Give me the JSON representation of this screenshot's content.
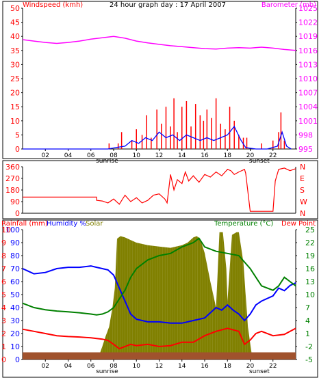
{
  "chart_data": [
    {
      "type": "line",
      "title": "24 hour graph day : 17 April 2007",
      "ylabel_left": "Windspeed (kmh)",
      "ylabel_right": "Barometer (mb)",
      "x_ticks": [
        "02",
        "04",
        "06",
        "08",
        "10",
        "12",
        "14",
        "16",
        "18",
        "20",
        "22"
      ],
      "x_events": {
        "sunrise": "sunrise",
        "sunset": "sunset"
      },
      "x_event_hours": {
        "sunrise": 6.7,
        "sunset": 19.9
      },
      "xlim": [
        0,
        24
      ],
      "ylim_left": [
        0,
        50
      ],
      "ylim_right": [
        995,
        1025
      ],
      "y_ticks_left": [
        0,
        5,
        10,
        15,
        20,
        25,
        30,
        35,
        40,
        45,
        50
      ],
      "y_ticks_right": [
        995,
        998,
        1001,
        1004,
        1007,
        1010,
        1013,
        1016,
        1019,
        1022,
        1025
      ],
      "colors": {
        "windspeed_gust": "#ff0000",
        "windspeed_avg": "#0000ff",
        "barometer": "#ff00ff"
      },
      "series": [
        {
          "name": "Barometer (mb)",
          "axis": "right",
          "x": [
            0,
            1,
            2,
            3,
            4,
            5,
            6,
            7,
            8,
            9,
            10,
            11,
            12,
            13,
            14,
            15,
            16,
            17,
            18,
            19,
            20,
            21,
            22,
            23,
            24
          ],
          "values": [
            1018.3,
            1018.0,
            1017.7,
            1017.5,
            1017.7,
            1018.0,
            1018.4,
            1018.7,
            1019.0,
            1018.6,
            1018.0,
            1017.6,
            1017.3,
            1017.0,
            1016.8,
            1016.6,
            1016.4,
            1016.3,
            1016.5,
            1016.6,
            1016.5,
            1016.7,
            1016.5,
            1016.2,
            1016.0
          ]
        },
        {
          "name": "Wind gust (kmh)",
          "axis": "left",
          "x": [
            7.6,
            8.4,
            8.7,
            9.6,
            10.0,
            10.5,
            10.9,
            11.3,
            11.8,
            12.2,
            12.6,
            13.0,
            13.3,
            13.6,
            14.0,
            14.4,
            14.8,
            15.2,
            15.6,
            15.9,
            16.2,
            16.6,
            17.0,
            17.4,
            17.8,
            18.2,
            18.6,
            19.0,
            19.4,
            19.7,
            21.0,
            22.0,
            22.5,
            22.7,
            23.0
          ],
          "values": [
            2,
            2,
            6,
            3,
            7,
            5,
            12,
            4,
            14,
            9,
            15,
            8,
            18,
            6,
            15,
            17,
            8,
            16,
            12,
            10,
            14,
            11,
            18,
            9,
            7,
            15,
            10,
            5,
            4,
            4,
            2,
            3,
            6,
            13,
            3
          ]
        },
        {
          "name": "Wind average (kmh)",
          "axis": "left",
          "x": [
            0,
            7.5,
            8.2,
            9.0,
            9.6,
            10.2,
            10.8,
            11.4,
            12.0,
            12.6,
            13.2,
            13.8,
            14.4,
            15.0,
            15.6,
            16.2,
            16.8,
            17.4,
            18.0,
            18.6,
            19.2,
            19.6,
            20.5,
            21.5,
            22.4,
            22.8,
            23.2,
            23.6
          ],
          "values": [
            0,
            0,
            0.5,
            1,
            3,
            2,
            4,
            3,
            6,
            4,
            5,
            3,
            5,
            4,
            3,
            4,
            3,
            4,
            5,
            8,
            3,
            0.5,
            0,
            0,
            1,
            6,
            1,
            0
          ]
        }
      ]
    },
    {
      "type": "line",
      "title": "",
      "y_ticks_left": [
        0,
        90,
        180,
        270,
        360
      ],
      "ylim_left": [
        0,
        360
      ],
      "y_labels_right": [
        "N",
        "W",
        "S",
        "E",
        "N"
      ],
      "xlim": [
        0,
        24
      ],
      "colors": {
        "direction": "#ff0000"
      },
      "series": [
        {
          "name": "Wind direction (deg)",
          "x": [
            0,
            6.5,
            6.5,
            7.0,
            7.5,
            8.0,
            8.5,
            9.0,
            9.5,
            10.0,
            10.5,
            11.0,
            11.5,
            12.0,
            12.5,
            12.7,
            13.0,
            13.3,
            13.6,
            14.0,
            14.3,
            14.6,
            15.0,
            15.5,
            16.0,
            16.5,
            17.0,
            17.5,
            18.0,
            18.3,
            18.6,
            19.0,
            19.5,
            19.6,
            20.0,
            20.5,
            21.0,
            21.5,
            22.0,
            22.2,
            22.5,
            23.0,
            23.5,
            24.0
          ],
          "values": [
            125,
            125,
            100,
            95,
            80,
            110,
            70,
            140,
            90,
            120,
            80,
            100,
            140,
            150,
            110,
            80,
            300,
            180,
            260,
            230,
            320,
            250,
            290,
            240,
            300,
            280,
            320,
            290,
            340,
            330,
            300,
            320,
            340,
            310,
            15,
            15,
            15,
            15,
            15,
            250,
            340,
            350,
            330,
            345
          ]
        }
      ]
    },
    {
      "type": "line",
      "title": "",
      "ylabel_left_1": "Rainfall (mm)",
      "ylabel_left_2": "Humidity %",
      "ylabel_left_3": "Solar",
      "ylabel_right_1": "Temperature (°C)",
      "ylabel_right_2": "Dew Point",
      "y_ticks_left_outer": [
        0,
        1,
        2,
        3,
        4,
        5,
        6,
        7,
        8,
        9,
        10
      ],
      "y_ticks_left_inner": [
        0,
        10,
        20,
        30,
        40,
        50,
        60,
        70,
        80,
        90,
        100
      ],
      "y_ticks_right": [
        -5,
        -2,
        1,
        4,
        7,
        10,
        13,
        16,
        19,
        22,
        25
      ],
      "ylim_left": [
        0,
        100
      ],
      "ylim_right": [
        -5,
        25
      ],
      "xlim": [
        0,
        24
      ],
      "colors": {
        "humidity": "#0000ff",
        "temperature": "#008000",
        "dewpoint": "#ff0000",
        "solar": "#808000",
        "rainfall": "#a0522d"
      },
      "series": [
        {
          "name": "Solar",
          "axis": "left",
          "x": [
            0,
            6.6,
            6.8,
            7.0,
            7.3,
            7.6,
            7.9,
            8.1,
            8.3,
            8.6,
            9.0,
            9.5,
            10.0,
            11.0,
            12.0,
            13.0,
            14.0,
            14.5,
            15.0,
            15.3,
            15.6,
            16.0,
            16.5,
            17.0,
            17.3,
            17.6,
            17.9,
            18.0,
            18.4,
            18.8,
            19.0,
            19.4,
            19.8,
            20.2,
            20.6,
            24.0
          ],
          "values": [
            0,
            0,
            5,
            10,
            18,
            25,
            40,
            55,
            93,
            95,
            94,
            92,
            90,
            88,
            87,
            86,
            88,
            90,
            94,
            95,
            93,
            82,
            60,
            40,
            98,
            98,
            70,
            45,
            96,
            98,
            98,
            75,
            25,
            0,
            0,
            0
          ]
        },
        {
          "name": "Humidity %",
          "axis": "left",
          "x": [
            0,
            0.5,
            1,
            2,
            3,
            4,
            5,
            6,
            6.5,
            7,
            7.5,
            8,
            8.5,
            9,
            9.5,
            10,
            11,
            12,
            13,
            14,
            15,
            16,
            16.5,
            17,
            17.5,
            18,
            18.5,
            19,
            19.5,
            20,
            20.5,
            21,
            22,
            22.5,
            23,
            23.5,
            24
          ],
          "values": [
            70,
            68,
            66,
            67,
            70,
            71,
            71,
            72,
            71,
            70,
            69,
            65,
            55,
            45,
            35,
            31,
            29,
            29,
            28,
            28,
            30,
            32,
            36,
            40,
            38,
            42,
            38,
            35,
            30,
            35,
            42,
            45,
            49,
            55,
            53,
            57,
            59
          ]
        },
        {
          "name": "Temperature (°C)",
          "axis": "right",
          "x": [
            0,
            1,
            2,
            3,
            4,
            5,
            6,
            6.5,
            7,
            7.5,
            8,
            8.5,
            9,
            9.5,
            10,
            11,
            12,
            13,
            14,
            15,
            15.5,
            16,
            17,
            18,
            19,
            20,
            20.5,
            21,
            22,
            22.5,
            23,
            23.5,
            24
          ],
          "values": [
            8,
            7,
            6.5,
            6.2,
            6.0,
            5.8,
            5.5,
            5.3,
            5.5,
            6,
            7,
            9,
            11,
            14,
            16,
            18,
            19,
            19.5,
            21,
            22,
            23,
            21,
            20,
            19.5,
            19,
            16,
            14,
            12,
            11,
            12,
            14,
            13,
            12
          ]
        },
        {
          "name": "Dew Point",
          "axis": "right",
          "x": [
            0,
            1,
            2,
            3,
            4,
            5,
            6,
            7,
            7.5,
            8,
            8.5,
            9,
            9.5,
            10,
            11,
            12,
            13,
            14,
            15,
            16,
            17,
            18,
            19,
            19.5,
            20,
            20.5,
            21,
            22,
            23,
            24
          ],
          "values": [
            2,
            1.5,
            1,
            0.5,
            0.3,
            0.2,
            0.0,
            -0.3,
            -0.6,
            -1.5,
            -2.5,
            -2,
            -1.5,
            -1.8,
            -1.5,
            -2,
            -1.8,
            -1,
            -1,
            0.5,
            1.5,
            2.2,
            1.5,
            -1.5,
            -0.5,
            1,
            1.5,
            0.5,
            0.8,
            2.2
          ]
        },
        {
          "name": "Rainfall (mm)",
          "axis": "left",
          "x": [
            0,
            24
          ],
          "values": [
            0.2,
            0.2
          ]
        }
      ],
      "x_ticks": [
        "02",
        "04",
        "06",
        "08",
        "10",
        "12",
        "14",
        "16",
        "18",
        "20",
        "22"
      ],
      "x_events": {
        "sunrise": "sunrise",
        "sunset": "sunset"
      },
      "x_event_hours": {
        "sunrise": 6.7,
        "sunset": 19.9
      }
    }
  ],
  "text_colors": {
    "red": "#ff0000",
    "blue": "#0000ff",
    "olive": "#808000",
    "green": "#008000",
    "magenta": "#ff00ff",
    "black": "#000000"
  }
}
